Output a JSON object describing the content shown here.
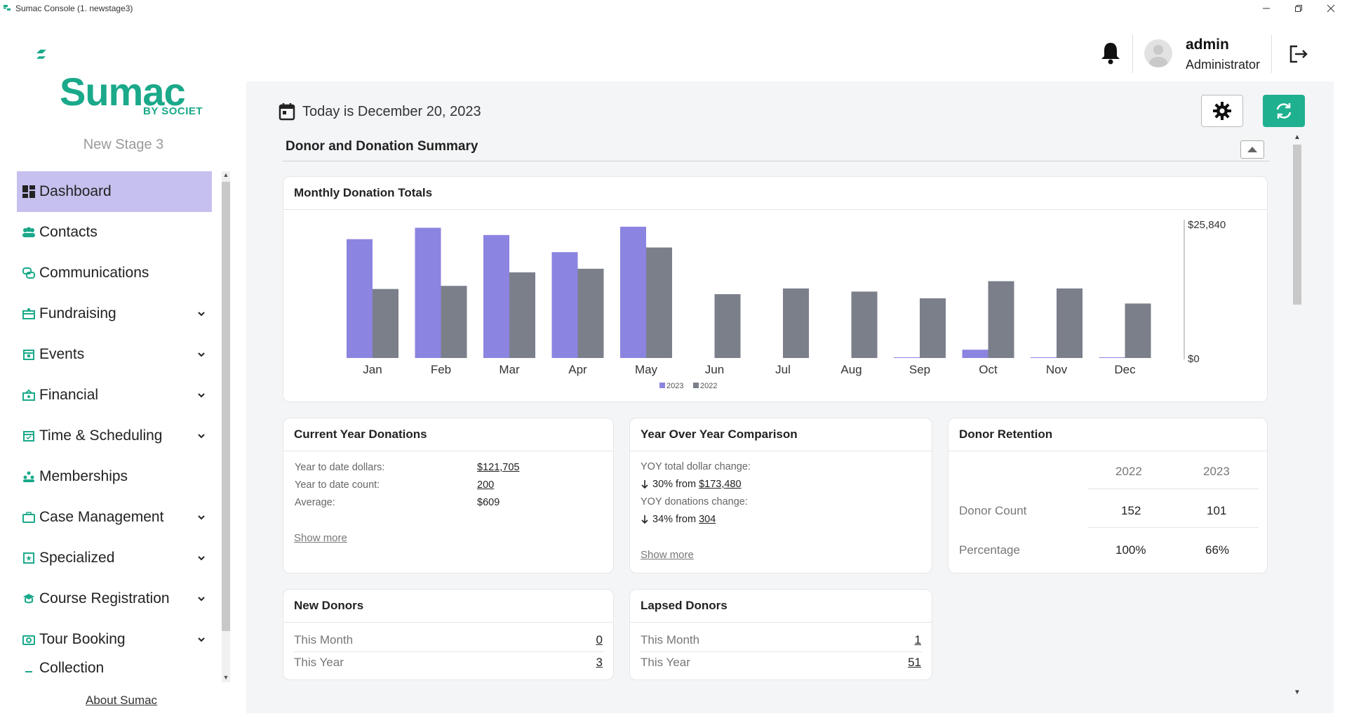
{
  "window": {
    "title": "Sumac Console (1. newstage3)"
  },
  "sidebar": {
    "logo_text": "Sumac",
    "logo_sub": "BY SOCIET",
    "stage": "New Stage 3",
    "items": [
      {
        "label": "Dashboard",
        "icon": "dashboard-icon",
        "active": true
      },
      {
        "label": "Contacts",
        "icon": "contacts-icon"
      },
      {
        "label": "Communications",
        "icon": "communications-icon"
      },
      {
        "label": "Fundraising",
        "icon": "fundraising-icon",
        "expandable": true
      },
      {
        "label": "Events",
        "icon": "events-icon",
        "expandable": true
      },
      {
        "label": "Financial",
        "icon": "financial-icon",
        "expandable": true
      },
      {
        "label": "Time & Scheduling",
        "icon": "calendar-icon",
        "expandable": true
      },
      {
        "label": "Memberships",
        "icon": "memberships-icon"
      },
      {
        "label": "Case Management",
        "icon": "case-icon",
        "expandable": true
      },
      {
        "label": "Specialized",
        "icon": "specialized-icon",
        "expandable": true
      },
      {
        "label": "Course Registration",
        "icon": "course-icon",
        "expandable": true
      },
      {
        "label": "Tour Booking",
        "icon": "tour-icon",
        "expandable": true
      },
      {
        "label": "Collection",
        "icon": "collection-icon"
      }
    ],
    "about": "About Sumac"
  },
  "header": {
    "user_name": "admin",
    "user_role": "Administrator"
  },
  "main": {
    "today": "Today is December 20, 2023",
    "section_title": "Donor and Donation Summary"
  },
  "colors": {
    "brand": "#1aa98a",
    "accent_button": "#1fb090",
    "bar_2023": "#8b84e0",
    "bar_2022": "#7a7f8a",
    "active_nav": "#c5c0ee"
  },
  "monthly_chart": {
    "title": "Monthly Donation Totals"
  },
  "chart_data": {
    "type": "bar",
    "title": "Monthly Donation Totals",
    "categories": [
      "Jan",
      "Feb",
      "Mar",
      "Apr",
      "May",
      "Jun",
      "Jul",
      "Aug",
      "Sep",
      "Oct",
      "Nov",
      "Dec"
    ],
    "series": [
      {
        "name": "2023",
        "color": "#8b84e0",
        "values": [
          22900,
          25100,
          23700,
          20400,
          25300,
          0,
          0,
          0,
          100,
          1600,
          100,
          100
        ]
      },
      {
        "name": "2022",
        "color": "#7a7f8a",
        "values": [
          13300,
          13900,
          16500,
          17200,
          21300,
          12300,
          13400,
          12800,
          11500,
          14800,
          13400,
          10500
        ]
      }
    ],
    "ylim": [
      0,
      25840
    ],
    "ytick_labels": [
      "$25,840",
      "$0"
    ],
    "y_axis_position": "right",
    "legend": "bottom-center"
  },
  "current_year": {
    "title": "Current Year Donations",
    "rows": [
      {
        "label": "Year to date dollars:",
        "value": "$121,705",
        "link": true
      },
      {
        "label": "Year to date count:",
        "value": "200",
        "link": true
      },
      {
        "label": "Average:",
        "value": "$609",
        "link": false
      }
    ],
    "show_more": "Show more"
  },
  "yoy": {
    "title": "Year Over Year Comparison",
    "dollar_label": "YOY total dollar change:",
    "dollar_pct": "30% from",
    "dollar_value": "$173,480",
    "count_label": "YOY donations change:",
    "count_pct": "34% from",
    "count_value": "304",
    "show_more": "Show more"
  },
  "retention": {
    "title": "Donor Retention",
    "years": [
      "2022",
      "2023"
    ],
    "rows": [
      {
        "label": "Donor Count",
        "values": [
          "152",
          "101"
        ]
      },
      {
        "label": "Percentage",
        "values": [
          "100%",
          "66%"
        ]
      }
    ]
  },
  "new_donors": {
    "title": "New Donors",
    "rows": [
      {
        "label": "This Month",
        "value": "0"
      },
      {
        "label": "This Year",
        "value": "3"
      }
    ]
  },
  "lapsed_donors": {
    "title": "Lapsed Donors",
    "rows": [
      {
        "label": "This Month",
        "value": "1"
      },
      {
        "label": "This Year",
        "value": "51"
      }
    ]
  }
}
